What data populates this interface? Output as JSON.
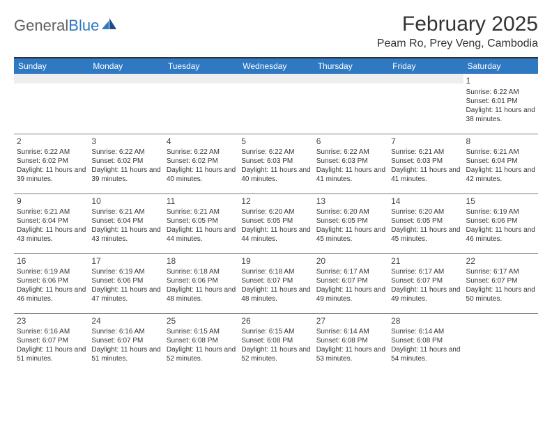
{
  "logo": {
    "word1": "General",
    "word2": "Blue"
  },
  "title": "February 2025",
  "location": "Peam Ro, Prey Veng, Cambodia",
  "colors": {
    "header_bg": "#2f78c2",
    "header_text": "#ffffff",
    "page_bg": "#ffffff",
    "grid_line": "#7a7a7a",
    "empty_band": "#eeeeee",
    "text": "#333333"
  },
  "dayHeaders": [
    "Sunday",
    "Monday",
    "Tuesday",
    "Wednesday",
    "Thursday",
    "Friday",
    "Saturday"
  ],
  "weeks": [
    [
      null,
      null,
      null,
      null,
      null,
      null,
      {
        "n": "1",
        "sunrise": "Sunrise: 6:22 AM",
        "sunset": "Sunset: 6:01 PM",
        "daylight": "Daylight: 11 hours and 38 minutes."
      }
    ],
    [
      {
        "n": "2",
        "sunrise": "Sunrise: 6:22 AM",
        "sunset": "Sunset: 6:02 PM",
        "daylight": "Daylight: 11 hours and 39 minutes."
      },
      {
        "n": "3",
        "sunrise": "Sunrise: 6:22 AM",
        "sunset": "Sunset: 6:02 PM",
        "daylight": "Daylight: 11 hours and 39 minutes."
      },
      {
        "n": "4",
        "sunrise": "Sunrise: 6:22 AM",
        "sunset": "Sunset: 6:02 PM",
        "daylight": "Daylight: 11 hours and 40 minutes."
      },
      {
        "n": "5",
        "sunrise": "Sunrise: 6:22 AM",
        "sunset": "Sunset: 6:03 PM",
        "daylight": "Daylight: 11 hours and 40 minutes."
      },
      {
        "n": "6",
        "sunrise": "Sunrise: 6:22 AM",
        "sunset": "Sunset: 6:03 PM",
        "daylight": "Daylight: 11 hours and 41 minutes."
      },
      {
        "n": "7",
        "sunrise": "Sunrise: 6:21 AM",
        "sunset": "Sunset: 6:03 PM",
        "daylight": "Daylight: 11 hours and 41 minutes."
      },
      {
        "n": "8",
        "sunrise": "Sunrise: 6:21 AM",
        "sunset": "Sunset: 6:04 PM",
        "daylight": "Daylight: 11 hours and 42 minutes."
      }
    ],
    [
      {
        "n": "9",
        "sunrise": "Sunrise: 6:21 AM",
        "sunset": "Sunset: 6:04 PM",
        "daylight": "Daylight: 11 hours and 43 minutes."
      },
      {
        "n": "10",
        "sunrise": "Sunrise: 6:21 AM",
        "sunset": "Sunset: 6:04 PM",
        "daylight": "Daylight: 11 hours and 43 minutes."
      },
      {
        "n": "11",
        "sunrise": "Sunrise: 6:21 AM",
        "sunset": "Sunset: 6:05 PM",
        "daylight": "Daylight: 11 hours and 44 minutes."
      },
      {
        "n": "12",
        "sunrise": "Sunrise: 6:20 AM",
        "sunset": "Sunset: 6:05 PM",
        "daylight": "Daylight: 11 hours and 44 minutes."
      },
      {
        "n": "13",
        "sunrise": "Sunrise: 6:20 AM",
        "sunset": "Sunset: 6:05 PM",
        "daylight": "Daylight: 11 hours and 45 minutes."
      },
      {
        "n": "14",
        "sunrise": "Sunrise: 6:20 AM",
        "sunset": "Sunset: 6:05 PM",
        "daylight": "Daylight: 11 hours and 45 minutes."
      },
      {
        "n": "15",
        "sunrise": "Sunrise: 6:19 AM",
        "sunset": "Sunset: 6:06 PM",
        "daylight": "Daylight: 11 hours and 46 minutes."
      }
    ],
    [
      {
        "n": "16",
        "sunrise": "Sunrise: 6:19 AM",
        "sunset": "Sunset: 6:06 PM",
        "daylight": "Daylight: 11 hours and 46 minutes."
      },
      {
        "n": "17",
        "sunrise": "Sunrise: 6:19 AM",
        "sunset": "Sunset: 6:06 PM",
        "daylight": "Daylight: 11 hours and 47 minutes."
      },
      {
        "n": "18",
        "sunrise": "Sunrise: 6:18 AM",
        "sunset": "Sunset: 6:06 PM",
        "daylight": "Daylight: 11 hours and 48 minutes."
      },
      {
        "n": "19",
        "sunrise": "Sunrise: 6:18 AM",
        "sunset": "Sunset: 6:07 PM",
        "daylight": "Daylight: 11 hours and 48 minutes."
      },
      {
        "n": "20",
        "sunrise": "Sunrise: 6:17 AM",
        "sunset": "Sunset: 6:07 PM",
        "daylight": "Daylight: 11 hours and 49 minutes."
      },
      {
        "n": "21",
        "sunrise": "Sunrise: 6:17 AM",
        "sunset": "Sunset: 6:07 PM",
        "daylight": "Daylight: 11 hours and 49 minutes."
      },
      {
        "n": "22",
        "sunrise": "Sunrise: 6:17 AM",
        "sunset": "Sunset: 6:07 PM",
        "daylight": "Daylight: 11 hours and 50 minutes."
      }
    ],
    [
      {
        "n": "23",
        "sunrise": "Sunrise: 6:16 AM",
        "sunset": "Sunset: 6:07 PM",
        "daylight": "Daylight: 11 hours and 51 minutes."
      },
      {
        "n": "24",
        "sunrise": "Sunrise: 6:16 AM",
        "sunset": "Sunset: 6:07 PM",
        "daylight": "Daylight: 11 hours and 51 minutes."
      },
      {
        "n": "25",
        "sunrise": "Sunrise: 6:15 AM",
        "sunset": "Sunset: 6:08 PM",
        "daylight": "Daylight: 11 hours and 52 minutes."
      },
      {
        "n": "26",
        "sunrise": "Sunrise: 6:15 AM",
        "sunset": "Sunset: 6:08 PM",
        "daylight": "Daylight: 11 hours and 52 minutes."
      },
      {
        "n": "27",
        "sunrise": "Sunrise: 6:14 AM",
        "sunset": "Sunset: 6:08 PM",
        "daylight": "Daylight: 11 hours and 53 minutes."
      },
      {
        "n": "28",
        "sunrise": "Sunrise: 6:14 AM",
        "sunset": "Sunset: 6:08 PM",
        "daylight": "Daylight: 11 hours and 54 minutes."
      },
      null
    ]
  ]
}
